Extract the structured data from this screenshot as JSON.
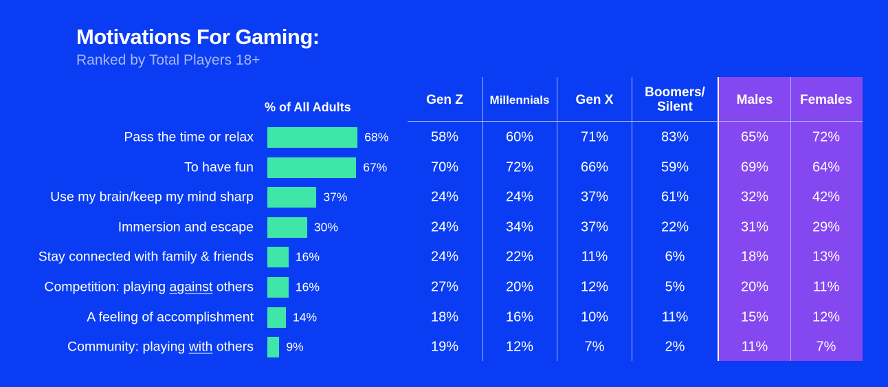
{
  "title": "Motivations For Gaming:",
  "subtitle": "Ranked by Total Players 18+",
  "colors": {
    "background": "#0a3df3",
    "bar": "#3ee6a7",
    "highlight_columns": "#8547f0",
    "subtitle": "#a9b6f7"
  },
  "chart_data": {
    "type": "bar",
    "orientation": "horizontal",
    "title": "Motivations For Gaming:",
    "subtitle": "Ranked by Total Players 18+",
    "value_header": "% of All Adults",
    "categories": [
      "Pass the time or relax",
      "To have fun",
      "Use my brain/keep my mind sharp",
      "Immersion and escape",
      "Stay connected with family & friends",
      "Competition: playing against others",
      "A feeling of accomplishment",
      "Community: playing with others"
    ],
    "values": [
      68,
      67,
      37,
      30,
      16,
      16,
      14,
      9
    ],
    "value_labels": [
      "68%",
      "67%",
      "37%",
      "30%",
      "16%",
      "16%",
      "14%",
      "9%"
    ],
    "xlim": [
      0,
      100
    ],
    "grid": false
  },
  "table": {
    "columns": [
      "Gen Z",
      "Millennials",
      "Gen X",
      "Boomers/ Silent",
      "Males",
      "Females"
    ],
    "rows": [
      [
        "58%",
        "60%",
        "71%",
        "83%",
        "65%",
        "72%"
      ],
      [
        "70%",
        "72%",
        "66%",
        "59%",
        "69%",
        "64%"
      ],
      [
        "24%",
        "24%",
        "37%",
        "61%",
        "32%",
        "42%"
      ],
      [
        "24%",
        "34%",
        "37%",
        "22%",
        "31%",
        "29%"
      ],
      [
        "24%",
        "22%",
        "11%",
        "6%",
        "18%",
        "13%"
      ],
      [
        "27%",
        "20%",
        "12%",
        "5%",
        "20%",
        "11%"
      ],
      [
        "18%",
        "16%",
        "10%",
        "11%",
        "15%",
        "12%"
      ],
      [
        "19%",
        "12%",
        "7%",
        "2%",
        "11%",
        "7%"
      ]
    ]
  }
}
